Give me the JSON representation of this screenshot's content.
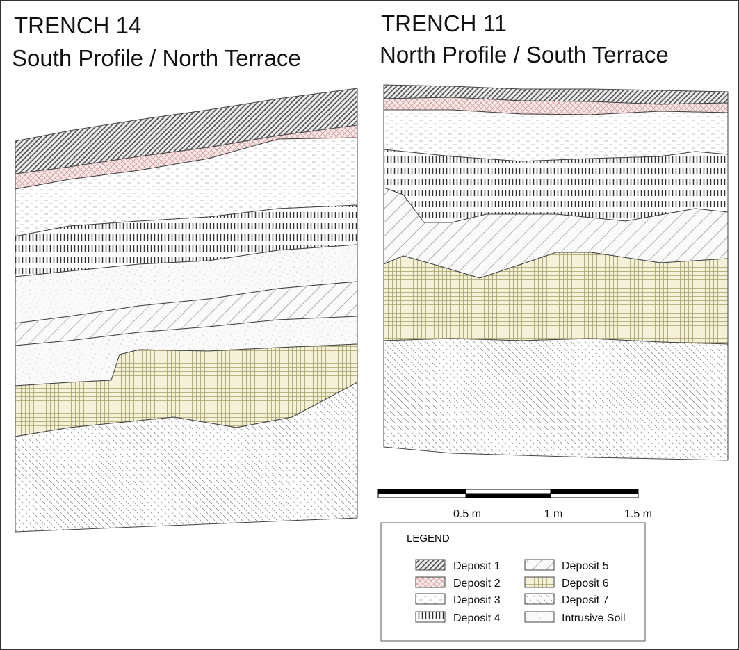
{
  "trench_14": {
    "title": "TRENCH 14",
    "subtitle": "South Profile / North Terrace"
  },
  "trench_11": {
    "title": "TRENCH 11",
    "subtitle": "North Profile / South Terrace"
  },
  "scale_bar": {
    "labels": [
      "0.5 m",
      "1 m",
      "1.5 m"
    ]
  },
  "legend": {
    "title": "LEGEND",
    "items": [
      "Deposit 1",
      "Deposit 2",
      "Deposit 3",
      "Deposit 4",
      "Deposit 5",
      "Deposit 6",
      "Deposit 7",
      "Intrusive Soil"
    ]
  }
}
